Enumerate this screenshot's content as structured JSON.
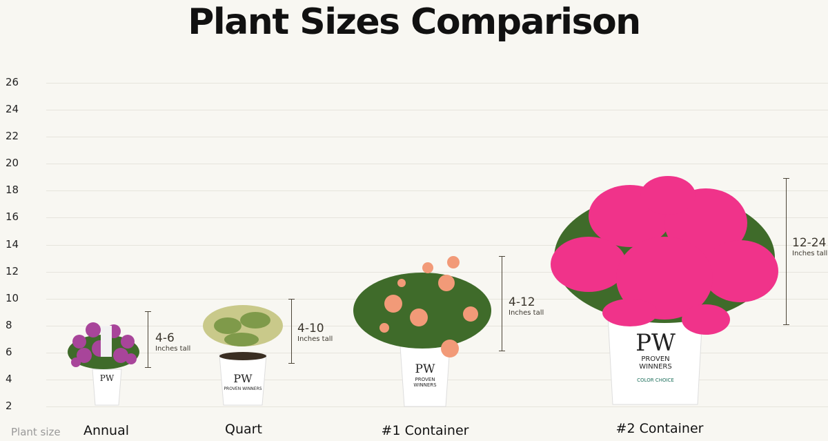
{
  "title": "Plant Sizes Comparison",
  "axis_label": "Plant size",
  "colors": {
    "background": "#f8f7f2",
    "bar": "#4a4336",
    "annual_flower": "#a8459a",
    "rose": "#f29a78",
    "weigela": "#f0338a",
    "foliage": "#3f6b2a"
  },
  "pot_brand": {
    "logo": "PW",
    "line1": "PROVEN",
    "line2": "WINNERS",
    "sub": "COLOR CHOICE"
  },
  "chart_data": {
    "type": "range",
    "title": "Plant Sizes Comparison",
    "xlabel": "Plant size",
    "ylabel": "",
    "ylim": [
      2,
      26
    ],
    "yticks": [
      2,
      4,
      6,
      8,
      10,
      12,
      14,
      16,
      18,
      20,
      22,
      24,
      26
    ],
    "grid": true,
    "categories": [
      "Annual",
      "Quart",
      "#1 Container",
      "#2 Container"
    ],
    "ranges": [
      {
        "category": "Annual",
        "min": 4,
        "max": 6,
        "label": "4-6",
        "unit": "Inches tall"
      },
      {
        "category": "Quart",
        "min": 4,
        "max": 10,
        "label": "4-10",
        "unit": "Inches tall"
      },
      {
        "category": "#1 Container",
        "min": 4,
        "max": 12,
        "label": "4-12",
        "unit": "Inches tall"
      },
      {
        "category": "#2 Container",
        "min": 12,
        "max": 24,
        "label": "12-24",
        "unit": "Inches tall"
      }
    ]
  }
}
